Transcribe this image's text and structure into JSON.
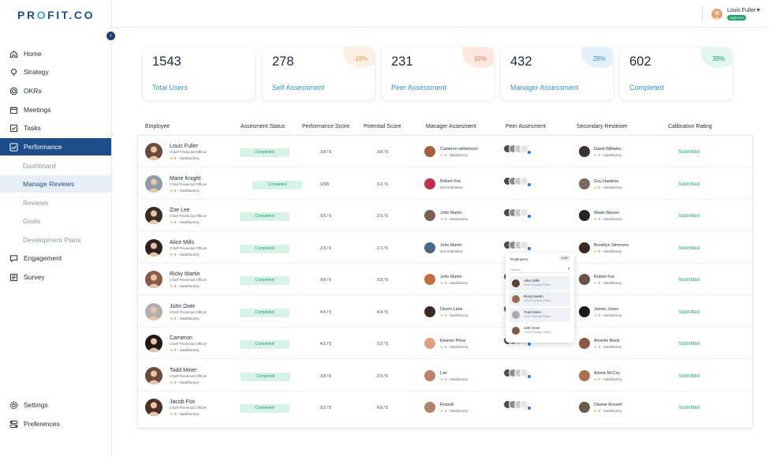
{
  "brand": {
    "logo_left": "PR",
    "logo_o": "O",
    "logo_right": "FIT.CO"
  },
  "user": {
    "name": "Louis Fuller",
    "badge": "Approver"
  },
  "sidebar": {
    "items": [
      {
        "label": "Home",
        "icon": "home-icon"
      },
      {
        "label": "Strategy",
        "icon": "bulb-icon"
      },
      {
        "label": "OKRs",
        "icon": "target-icon"
      },
      {
        "label": "Meetings",
        "icon": "calendar-icon"
      },
      {
        "label": "Tasks",
        "icon": "tasks-icon"
      },
      {
        "label": "Performance",
        "icon": "chart-icon"
      }
    ],
    "sub_items": [
      "Dashboard",
      "Manage Reviews",
      "Reviews",
      "Goals",
      "Development Plans"
    ],
    "items_after": [
      {
        "label": "Engagement",
        "icon": "chat-icon"
      },
      {
        "label": "Survey",
        "icon": "survey-icon"
      }
    ],
    "bottom": [
      {
        "label": "Settings",
        "icon": "gear-icon"
      },
      {
        "label": "Preferences",
        "icon": "toggle-icon"
      }
    ]
  },
  "cards": [
    {
      "value": "1543",
      "label": "Total Users",
      "pct": ""
    },
    {
      "value": "278",
      "label": "Self Assessment",
      "pct": "18%"
    },
    {
      "value": "231",
      "label": "Peer Assessment",
      "pct": "15%"
    },
    {
      "value": "432",
      "label": "Manager Assessment",
      "pct": "28%"
    },
    {
      "value": "602",
      "label": "Completed",
      "pct": "39%"
    }
  ],
  "table": {
    "headers": [
      "Employee",
      "Assesment Status",
      "Performance Score",
      "Potential Score",
      "Manager Assesment",
      "Peer Assesment",
      "Secondary Reviewer",
      "Calibration Rating"
    ],
    "rows": [
      {
        "name": "Louis Fuller",
        "title": "Chief Financial Officer",
        "rating": "3 - Satisfactory",
        "status": "Completed",
        "perf": "3.8 / 5",
        "pot": "3.8 / 5",
        "mgr": "Cameron williamson",
        "mgr_sub": "3 - Satisfactory",
        "sec": "David Williams",
        "sec_sub": "3 - Satisfactory",
        "calib": "Submitted"
      },
      {
        "name": "Marie Knight",
        "title": "Chief Financial Officer",
        "rating": "3 - Satisfactory",
        "status": "Completed",
        "perf": "3.5/5",
        "pot": "3.2 / 5",
        "mgr": "Robert Fox",
        "mgr_sub": "Not Submitted",
        "sec": "Guy Hawkins",
        "sec_sub": "3 - Satisfactory",
        "calib": "Submitted"
      },
      {
        "name": "Zoe Lee",
        "title": "Chief Financial Officer",
        "rating": "3 - Satisfactory",
        "status": "Completed",
        "perf": "3.5 / 5",
        "pot": "2.9 / 5",
        "mgr": "John Martin",
        "mgr_sub": "3 - Satisfactory",
        "sec": "Wade Warren",
        "sec_sub": "3 - Satisfactory",
        "calib": "Submitted"
      },
      {
        "name": "Alice Mills",
        "title": "Chief Financial Officer",
        "rating": "3 - Satisfactory",
        "status": "Completed",
        "perf": "2.9 / 5",
        "pot": "2.7 / 5",
        "mgr": "John Martin",
        "mgr_sub": "Not Submitted",
        "sec": "Brooklyn Simmons",
        "sec_sub": "3 - Satisfactory",
        "calib": "Submitted"
      },
      {
        "name": "Ricky Martin",
        "title": "Chief Financial Officer",
        "rating": "3 - Satisfactory",
        "status": "Completed",
        "perf": "3.6 / 5",
        "pot": "3.9 / 5",
        "mgr": "John Martin",
        "mgr_sub": "3 - Satisfactory",
        "sec": "Robert Fox",
        "sec_sub": "3 - Satisfactory",
        "calib": "Submitted"
      },
      {
        "name": "John Doer",
        "title": "Chief Financial Officer",
        "rating": "3 - Satisfactory",
        "status": "Completed",
        "perf": "4.5 / 5",
        "pot": "4.9 / 5",
        "mgr": "Devon Lane",
        "mgr_sub": "3 - Satisfactory",
        "sec": "James Jones",
        "sec_sub": "3 - Satisfactory",
        "calib": "Submitted"
      },
      {
        "name": "Cameron",
        "title": "Chief Financial Officer",
        "rating": "3 - Satisfactory",
        "status": "Completed",
        "perf": "4.1 / 5",
        "pot": "3.2 / 5",
        "mgr": "Eleanor Pena",
        "mgr_sub": "3 - Satisfactory",
        "sec": "Annette Black",
        "sec_sub": "3 - Satisfactory",
        "calib": "Submitted"
      },
      {
        "name": "Todd Miner",
        "title": "Chief Financial Officer",
        "rating": "3 - Satisfactory",
        "status": "Completed",
        "perf": "3.9 / 5",
        "pot": "2.9 / 5",
        "mgr": "Lee",
        "mgr_sub": "2 - Satisfactory",
        "sec": "Arlene McCoy",
        "sec_sub": "3 - Satisfactory",
        "calib": "Submitted"
      },
      {
        "name": "Jacob Fox",
        "title": "Chief Financial Officer",
        "rating": "3 - Satisfactory",
        "status": "Completed",
        "perf": "3.2 / 5",
        "pot": "4.5 / 5",
        "mgr": "Russell",
        "mgr_sub": "3 - Satisfactory",
        "sec": "Dianne Russell",
        "sec_sub": "3 - Satisfactory",
        "calib": "Submitted"
      }
    ]
  },
  "popup": {
    "title": "Employees",
    "invite": "Invite",
    "search_placeholder": "Search",
    "items": [
      {
        "name": "Alice Mills",
        "title": "Chief Financial Officer"
      },
      {
        "name": "Ricky Martin",
        "title": "Chief Financial Officer"
      },
      {
        "name": "Todd Miner",
        "title": "Chief Financial Officer"
      },
      {
        "name": "John Doer",
        "title": "Chief Financial Officer"
      }
    ]
  },
  "colors": {
    "primary": "#1e4d8c",
    "accent": "#3a8fd9",
    "success": "#23a06b",
    "star": "#f0a830"
  }
}
